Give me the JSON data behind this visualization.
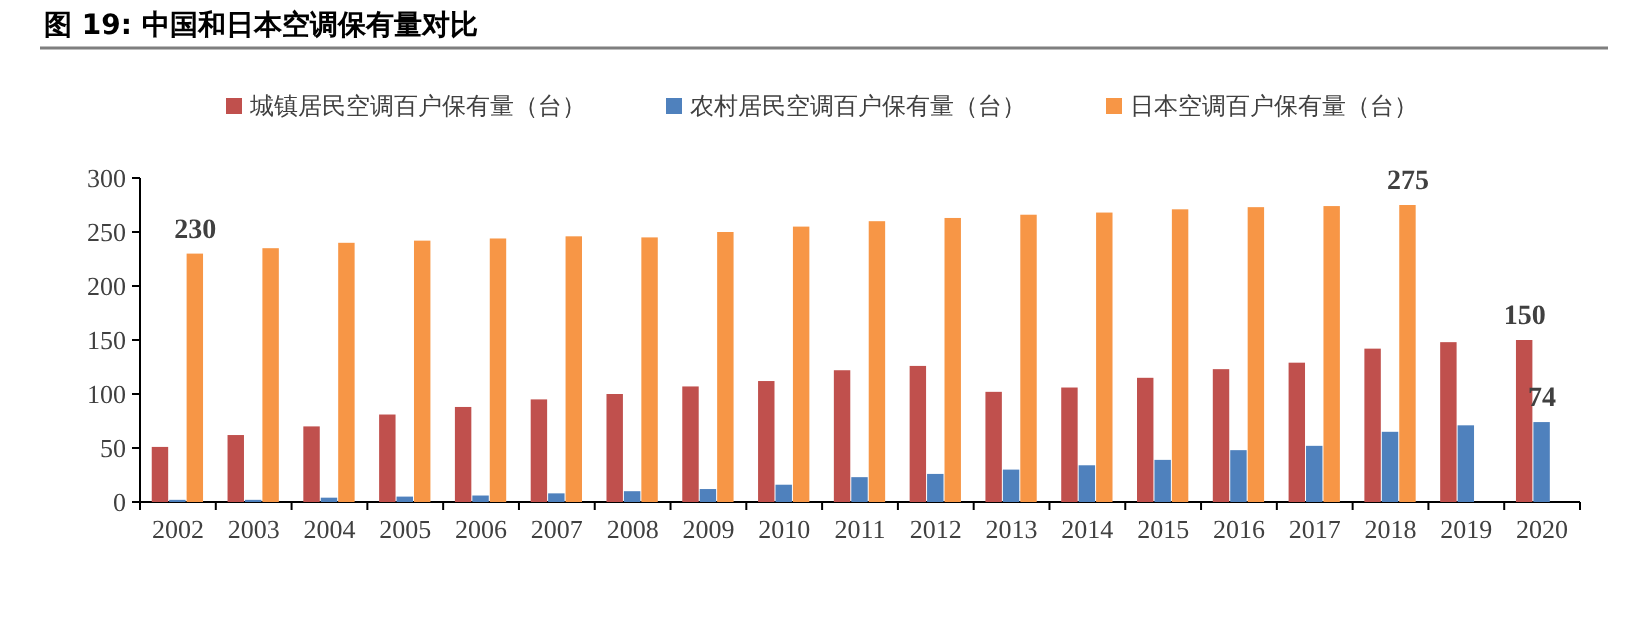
{
  "chart_data": {
    "type": "bar",
    "title": "图 19: 中国和日本空调保有量对比",
    "categories": [
      "2002",
      "2003",
      "2004",
      "2005",
      "2006",
      "2007",
      "2008",
      "2009",
      "2010",
      "2011",
      "2012",
      "2013",
      "2014",
      "2015",
      "2016",
      "2017",
      "2018",
      "2019",
      "2020"
    ],
    "series": [
      {
        "name": "城镇居民空调百户保有量（台）",
        "color": "#c0504d",
        "values": [
          51,
          62,
          70,
          81,
          88,
          95,
          100,
          107,
          112,
          122,
          126,
          102,
          106,
          115,
          123,
          129,
          142,
          148,
          150
        ],
        "value_labels": [
          null,
          null,
          null,
          null,
          null,
          null,
          null,
          null,
          null,
          null,
          null,
          null,
          null,
          null,
          null,
          null,
          null,
          null,
          "150"
        ]
      },
      {
        "name": "农村居民空调百户保有量（台）",
        "color": "#4f81bd",
        "values": [
          2,
          2,
          4,
          5,
          6,
          8,
          10,
          12,
          16,
          23,
          26,
          30,
          34,
          39,
          48,
          52,
          65,
          71,
          74
        ],
        "value_labels": [
          null,
          null,
          null,
          null,
          null,
          null,
          null,
          null,
          null,
          null,
          null,
          null,
          null,
          null,
          null,
          null,
          null,
          null,
          "74"
        ]
      },
      {
        "name": "日本空调百户保有量（台）",
        "color": "#f79646",
        "values": [
          230,
          235,
          240,
          242,
          244,
          246,
          245,
          250,
          255,
          260,
          263,
          266,
          268,
          271,
          273,
          274,
          275,
          null,
          null
        ],
        "value_labels": [
          "230",
          null,
          null,
          null,
          null,
          null,
          null,
          null,
          null,
          null,
          null,
          null,
          null,
          null,
          null,
          null,
          "275",
          null,
          null
        ]
      }
    ],
    "ylim": [
      0,
      300
    ],
    "yticks": [
      0,
      50,
      100,
      150,
      200,
      250,
      300
    ],
    "legend": "top"
  }
}
